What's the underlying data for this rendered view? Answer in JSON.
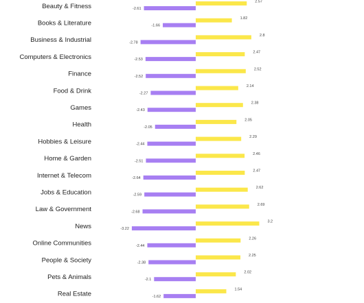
{
  "chart_data": {
    "type": "bar",
    "orientation": "horizontal",
    "layout": "diverging",
    "categories": [
      "Beauty & Fitness",
      "Books & Literature",
      "Business & Industrial",
      "Computers & Electronics",
      "Finance",
      "Food & Drink",
      "Games",
      "Health",
      "Hobbies & Leisure",
      "Home & Garden",
      "Internet & Telecom",
      "Jobs & Education",
      "Law & Government",
      "News",
      "Online Communities",
      "People & Society",
      "Pets & Animals",
      "Real Estate"
    ],
    "series": [
      {
        "color": "#fbe74a",
        "values": [
          2.57,
          1.82,
          2.8,
          2.47,
          2.52,
          2.14,
          2.38,
          2.05,
          2.29,
          2.46,
          2.47,
          2.62,
          2.69,
          3.2,
          2.26,
          2.25,
          2.02,
          1.54
        ],
        "value_labels": [
          "2.57",
          "1.82",
          "2.8",
          "2.47",
          "2.52",
          "2.14",
          "2.38",
          "2.05",
          "2.29",
          "2.46",
          "2.47",
          "2.62",
          "2.69",
          "3.2",
          "2.26",
          "2.25",
          "2.02",
          "1.54"
        ]
      },
      {
        "color": "#a77ff2",
        "values": [
          -2.61,
          -1.66,
          -2.78,
          -2.53,
          -2.52,
          -2.27,
          -2.43,
          -2.05,
          -2.44,
          -2.51,
          -2.64,
          -2.59,
          -2.68,
          -3.22,
          -2.44,
          -2.38,
          -2.1,
          -1.62
        ],
        "value_labels": [
          "-2.61",
          "-1.66",
          "-2.78",
          "-2.53",
          "-2.52",
          "-2.27",
          "-2.43",
          "-2.05",
          "-2.44",
          "-2.51",
          "-2.64",
          "-2.59",
          "-2.68",
          "-3.22",
          "-2.44",
          "-2.38",
          "-2.1",
          "-1.62"
        ]
      }
    ],
    "xlim": [
      -3.4,
      3.4
    ],
    "grid": false,
    "legend": "none",
    "title": "",
    "xlabel": "",
    "ylabel": ""
  }
}
